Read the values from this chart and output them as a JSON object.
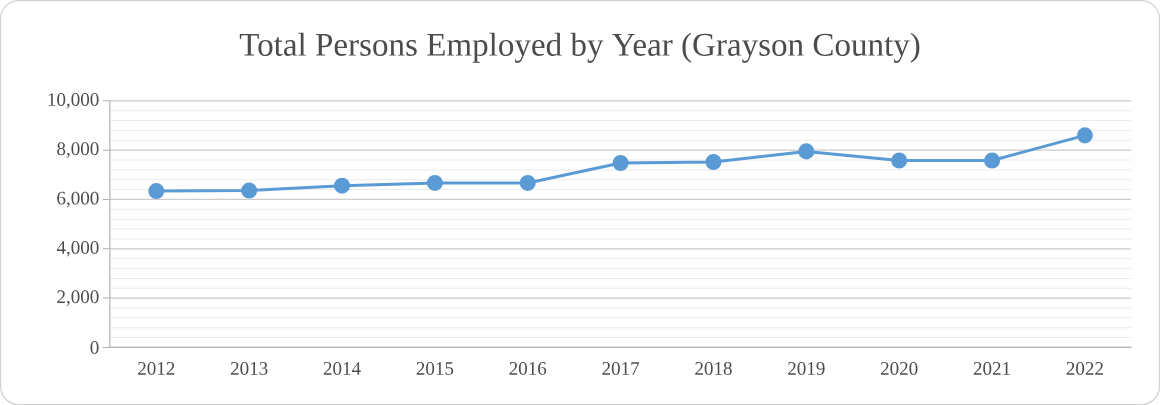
{
  "chart_data": {
    "type": "line",
    "title": "Total Persons Employed by Year (Grayson County)",
    "categories": [
      "2012",
      "2013",
      "2014",
      "2015",
      "2016",
      "2017",
      "2018",
      "2019",
      "2020",
      "2021",
      "2022"
    ],
    "series": [
      {
        "color": "#5b9bd5",
        "values": [
          6340,
          6360,
          6560,
          6670,
          6670,
          7480,
          7520,
          7950,
          7580,
          7580,
          8600
        ]
      }
    ],
    "ylim": [
      0,
      10000
    ],
    "yticks": [
      {
        "value": 0,
        "label": "0"
      },
      {
        "value": 2000,
        "label": "2,000"
      },
      {
        "value": 4000,
        "label": "4,000"
      },
      {
        "value": 6000,
        "label": "6,000"
      },
      {
        "value": 8000,
        "label": "8,000"
      },
      {
        "value": 10000,
        "label": "10,000"
      }
    ],
    "grid": "y",
    "marker": "circle",
    "line_style": "solid"
  }
}
